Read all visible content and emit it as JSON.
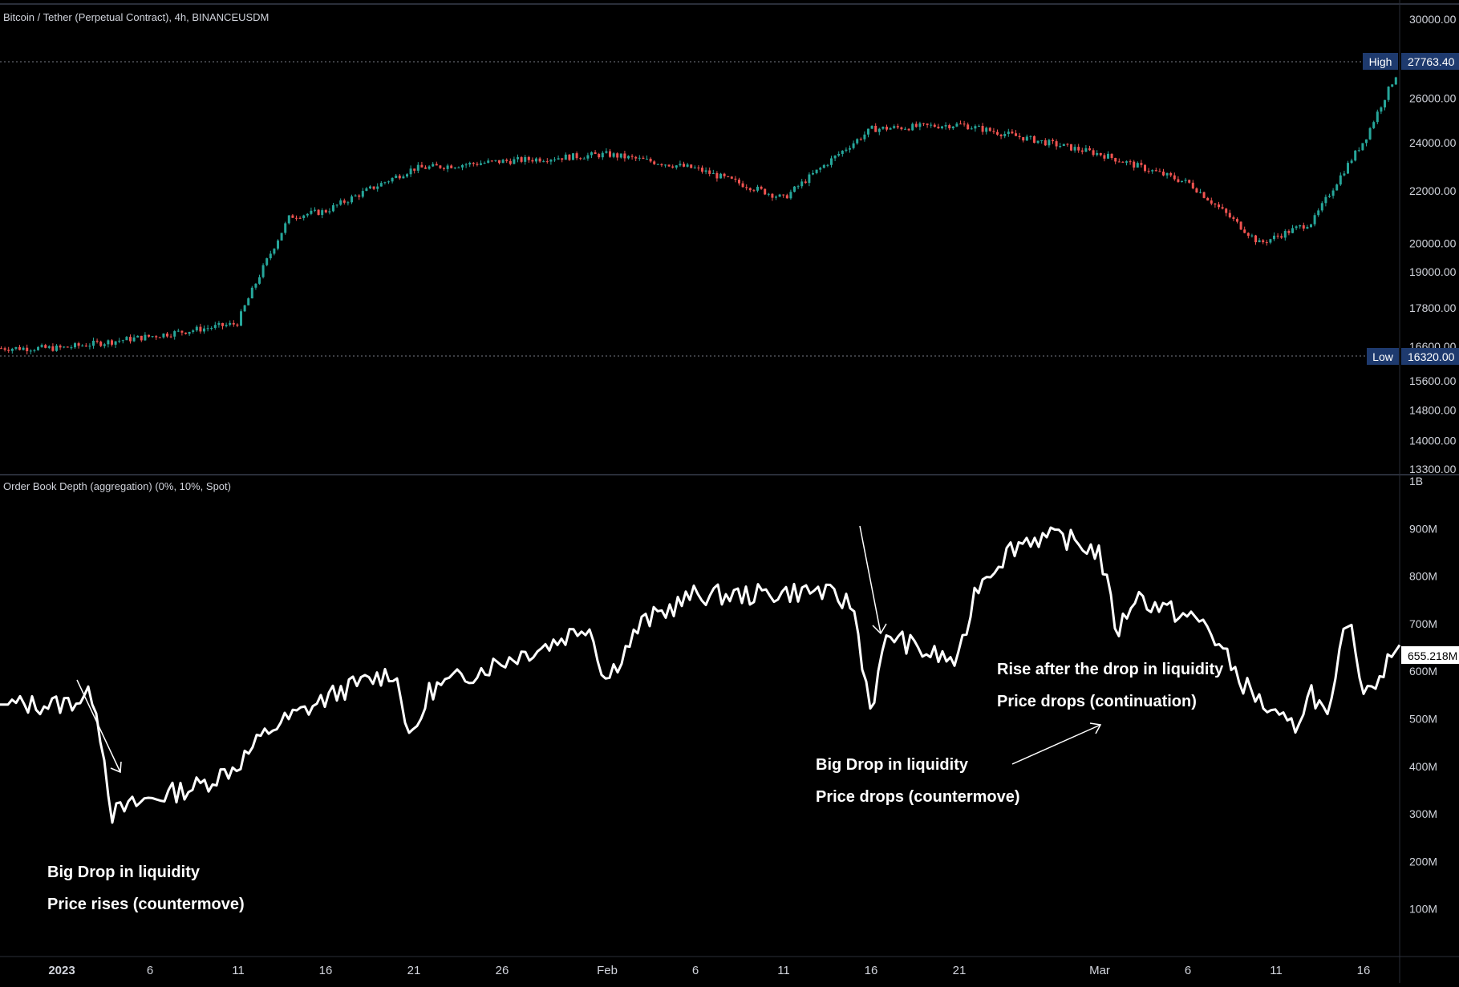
{
  "price_pane": {
    "title": "Bitcoin / Tether (Perpetual Contract), 4h, BINANCEUSDM",
    "y_ticks": [
      "30000.00",
      "26000.00",
      "24000.00",
      "22000.00",
      "20000.00",
      "19000.00",
      "17800.00",
      "16600.00",
      "15600.00",
      "14800.00",
      "14000.00",
      "13300.00"
    ],
    "high_label": "High",
    "high_value": "27763.40",
    "low_label": "Low",
    "low_value": "16320.00"
  },
  "depth_pane": {
    "title": "Order Book Depth (aggregation) (0%, 10%, Spot)",
    "y_ticks": [
      "1B",
      "900M",
      "800M",
      "700M",
      "600M",
      "500M",
      "400M",
      "300M",
      "200M",
      "100M"
    ],
    "last_value": "655.218M"
  },
  "x_axis": {
    "ticks": [
      "2023",
      "6",
      "11",
      "16",
      "21",
      "26",
      "Feb",
      "6",
      "11",
      "16",
      "21",
      "Mar",
      "6",
      "11",
      "16"
    ]
  },
  "annotations": [
    {
      "line1": "Big Drop in liquidity",
      "line2": "Price rises (countermove)"
    },
    {
      "line1": "Big Drop in liquidity",
      "line2": "Price drops (countermove)"
    },
    {
      "line1": "Rise after the drop in liquidity",
      "line2": "Price drops (continuation)"
    }
  ],
  "colors": {
    "background": "#000000",
    "up_candle": "#26a69a",
    "down_candle": "#ef5350",
    "depth_line": "#ffffff",
    "label_bg": "#1e3a6e",
    "axis_text": "#d1d4dc"
  },
  "chart_data": [
    {
      "type": "candlestick",
      "title": "Bitcoin / Tether (Perpetual Contract), 4h, BINANCEUSDM",
      "x": [
        "2023-01-01",
        "2023-01-06",
        "2023-01-11",
        "2023-01-14",
        "2023-01-16",
        "2023-01-21",
        "2023-01-26",
        "2023-02-01",
        "2023-02-06",
        "2023-02-11",
        "2023-02-16",
        "2023-02-21",
        "2023-03-01",
        "2023-03-06",
        "2023-03-10",
        "2023-03-13",
        "2023-03-16",
        "2023-03-18"
      ],
      "close": [
        16550,
        16900,
        17300,
        21000,
        21200,
        22900,
        23200,
        23500,
        22900,
        21700,
        24600,
        24800,
        23500,
        22300,
        20000,
        20800,
        24200,
        27600
      ],
      "high": 27763.4,
      "low": 16320,
      "ylim": [
        13300,
        30000
      ],
      "scale": "log"
    },
    {
      "type": "line",
      "title": "Order Book Depth (aggregation) (0%, 10%, Spot)",
      "x": [
        "2023-01-01",
        "2023-01-03",
        "2023-01-04",
        "2023-01-06",
        "2023-01-09",
        "2023-01-11",
        "2023-01-13",
        "2023-01-15",
        "2023-01-17",
        "2023-01-20",
        "2023-01-21",
        "2023-01-22",
        "2023-01-26",
        "2023-01-29",
        "2023-01-31",
        "2023-02-01",
        "2023-02-03",
        "2023-02-06",
        "2023-02-09",
        "2023-02-13",
        "2023-02-15",
        "2023-02-16",
        "2023-02-17",
        "2023-02-19",
        "2023-02-21",
        "2023-02-22",
        "2023-02-24",
        "2023-02-25",
        "2023-02-27",
        "2023-03-01",
        "2023-03-02",
        "2023-03-03",
        "2023-03-04",
        "2023-03-07",
        "2023-03-09",
        "2023-03-11",
        "2023-03-12",
        "2023-03-13",
        "2023-03-14",
        "2023-03-15",
        "2023-03-16",
        "2023-03-17",
        "2023-03-18"
      ],
      "values": [
        530,
        550,
        300,
        330,
        360,
        400,
        480,
        520,
        560,
        600,
        450,
        560,
        620,
        660,
        700,
        580,
        700,
        760,
        760,
        770,
        740,
        520,
        680,
        640,
        620,
        780,
        860,
        880,
        880,
        850,
        680,
        760,
        740,
        700,
        580,
        500,
        480,
        560,
        490,
        720,
        560,
        600,
        655.218
      ],
      "ylim": [
        0,
        1000
      ],
      "unit": "M"
    }
  ]
}
